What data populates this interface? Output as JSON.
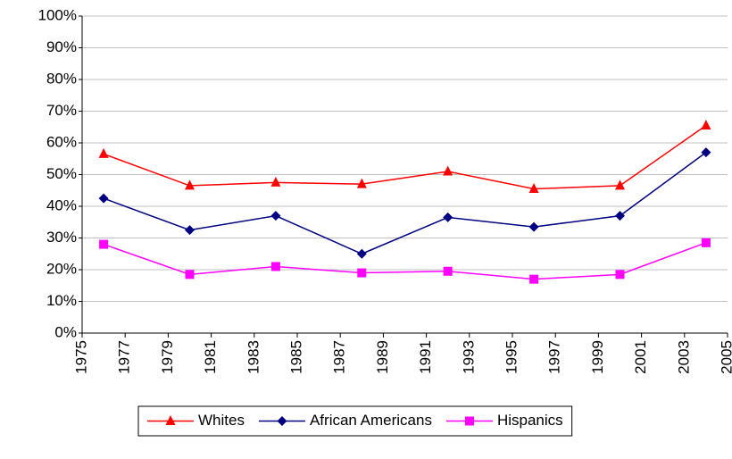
{
  "chart_data": {
    "type": "line",
    "x": [
      1976,
      1980,
      1984,
      1988,
      1992,
      1996,
      2000,
      2004
    ],
    "series": [
      {
        "name": "Whites",
        "color": "#ff0000",
        "marker": "triangle",
        "values": [
          56.5,
          46.5,
          47.5,
          47,
          51,
          45.5,
          46.5,
          65.5
        ]
      },
      {
        "name": "African Americans",
        "color": "#000080",
        "marker": "diamond",
        "values": [
          42.5,
          32.5,
          37,
          25,
          36.5,
          33.5,
          37,
          57
        ]
      },
      {
        "name": "Hispanics",
        "color": "#ff00ff",
        "marker": "square",
        "values": [
          28,
          18.5,
          21,
          19,
          19.5,
          17,
          18.5,
          28.5
        ]
      }
    ],
    "xlim": [
      1975,
      2005
    ],
    "xticks": [
      1975,
      1977,
      1979,
      1981,
      1983,
      1985,
      1987,
      1989,
      1991,
      1993,
      1995,
      1997,
      1999,
      2001,
      2003,
      2005
    ],
    "ylim": [
      0,
      100
    ],
    "yticks": [
      {
        "value": 0,
        "label": "0%"
      },
      {
        "value": 10,
        "label": "10%"
      },
      {
        "value": 20,
        "label": "20%"
      },
      {
        "value": 30,
        "label": "30%"
      },
      {
        "value": 40,
        "label": "40%"
      },
      {
        "value": 50,
        "label": "50%"
      },
      {
        "value": 60,
        "label": "60%"
      },
      {
        "value": 70,
        "label": "70%"
      },
      {
        "value": 80,
        "label": "80%"
      },
      {
        "value": 90,
        "label": "90%"
      },
      {
        "value": 100,
        "label": "100%"
      }
    ],
    "grid": true,
    "legend": "bottom"
  }
}
